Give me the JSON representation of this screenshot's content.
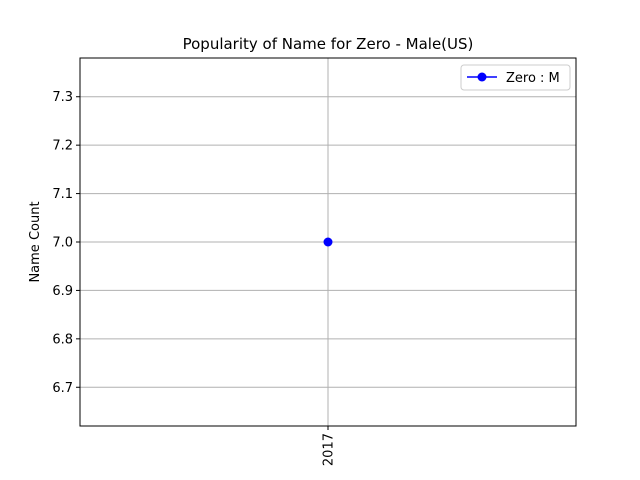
{
  "chart_data": {
    "type": "line",
    "title": "Popularity of Name for Zero - Male(US)",
    "xlabel": "",
    "ylabel": "Name Count",
    "categories": [
      "2017"
    ],
    "series": [
      {
        "name": "Zero : M",
        "values": [
          7.0
        ],
        "color": "#0000ff",
        "marker": "circle"
      }
    ],
    "ylim": [
      6.62,
      7.38
    ],
    "yticks": [
      "6.7",
      "6.8",
      "6.9",
      "7.0",
      "7.1",
      "7.2",
      "7.3"
    ],
    "grid": true,
    "legend": "top-right",
    "xtick_rotation": "vertical"
  }
}
